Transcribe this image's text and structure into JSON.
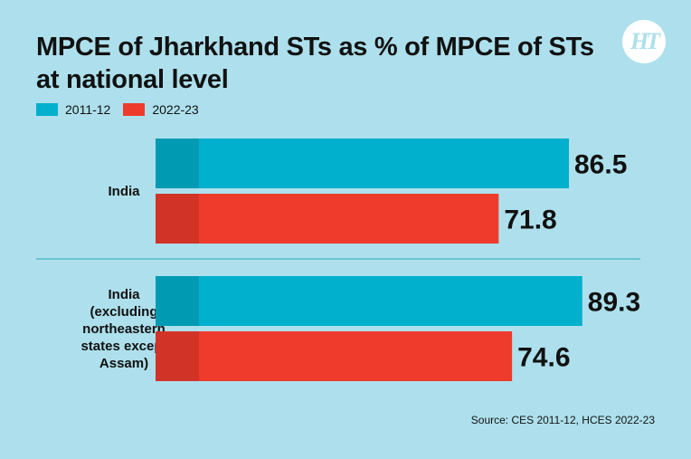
{
  "header": {
    "title": "MPCE of Jharkhand STs as % of MPCE of STs at national level",
    "logo_text": "HT"
  },
  "source": "Source: CES 2011-12, HCES 2022-23",
  "colors": {
    "series_2011": "#00b0cc",
    "series_2022": "#ee3b2c",
    "background": "#ade0ec",
    "divider": "#2aa3bd"
  },
  "chart_data": {
    "type": "bar",
    "orientation": "horizontal",
    "categories": [
      [
        "India"
      ],
      [
        "India",
        "(excluding",
        "northeastern",
        "states except",
        "Assam)"
      ]
    ],
    "series": [
      {
        "name": "2011-12",
        "values": [
          86.5,
          89.3
        ],
        "color": "#00b0cc"
      },
      {
        "name": "2022-23",
        "values": [
          71.8,
          74.6
        ],
        "color": "#ee3b2c"
      }
    ],
    "legend": "top-left",
    "grid": false
  }
}
